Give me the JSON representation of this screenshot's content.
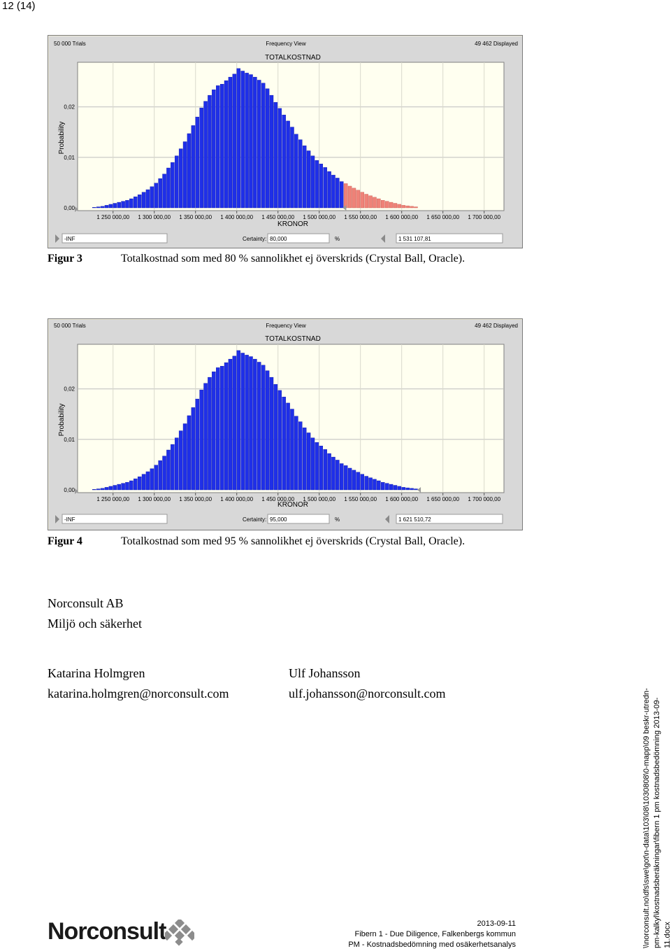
{
  "page": {
    "number": "12 (14)"
  },
  "figures": [
    {
      "caption_label": "Figur 3",
      "caption_text": "Totalkostnad som med 80 % sannolikhet ej överskrids (Crystal Ball, Oracle).",
      "window": {
        "trials": "50 000 Trials",
        "view": "Frequency View",
        "displayed": "49 462 Displayed",
        "title": "TOTALKOSTNAD",
        "ylabel": "Probability",
        "xlabel": "KRONOR",
        "left_field": "-INF",
        "certainty_label": "Certainty:",
        "certainty_value": "80,000",
        "percent_sign": "%",
        "right_field": "1 531 107,81"
      }
    },
    {
      "caption_label": "Figur 4",
      "caption_text": "Totalkostnad som med 95 % sannolikhet ej överskrids (Crystal Ball, Oracle).",
      "window": {
        "trials": "50 000 Trials",
        "view": "Frequency View",
        "displayed": "49 462 Displayed",
        "title": "TOTALKOSTNAD",
        "ylabel": "Probability",
        "xlabel": "KRONOR",
        "left_field": "-INF",
        "certainty_label": "Certainty:",
        "certainty_value": "95,000",
        "percent_sign": "%",
        "right_field": "1 621 510,72"
      }
    }
  ],
  "chart_data": [
    {
      "type": "bar",
      "title": "TOTALKOSTNAD",
      "xlabel": "KRONOR",
      "ylabel": "Probability",
      "x_ticks": [
        "1 250 000,00",
        "1 300 000,00",
        "1 350 000,00",
        "1 400 000,00",
        "1 450 000,00",
        "1 500 000,00",
        "1 550 000,00",
        "1 600 000,00",
        "1 650 000,00",
        "1 700 000,00"
      ],
      "x_tick_values": [
        1250000,
        1300000,
        1350000,
        1400000,
        1450000,
        1500000,
        1550000,
        1600000,
        1650000,
        1700000
      ],
      "y_ticks": [
        "0,00",
        "0,01",
        "0,02"
      ],
      "ylim": [
        0,
        0.028
      ],
      "bin_start": 1220000,
      "bin_width": 5000,
      "values": [
        0.0,
        0.0001,
        0.0002,
        0.0003,
        0.0005,
        0.0007,
        0.0009,
        0.0011,
        0.0013,
        0.0015,
        0.0018,
        0.0022,
        0.0026,
        0.0031,
        0.0036,
        0.0042,
        0.0049,
        0.0058,
        0.0067,
        0.0079,
        0.009,
        0.0103,
        0.0117,
        0.0131,
        0.0147,
        0.0163,
        0.018,
        0.0198,
        0.0211,
        0.0223,
        0.0234,
        0.0242,
        0.0245,
        0.0252,
        0.0259,
        0.0265,
        0.0276,
        0.0271,
        0.0267,
        0.0264,
        0.0259,
        0.0253,
        0.0247,
        0.0236,
        0.0223,
        0.0209,
        0.0197,
        0.0184,
        0.0172,
        0.016,
        0.0146,
        0.0135,
        0.0123,
        0.0113,
        0.0103,
        0.0094,
        0.0087,
        0.008,
        0.0072,
        0.0065,
        0.0059,
        0.0052,
        0.0048,
        0.0043,
        0.0039,
        0.0035,
        0.0031,
        0.0027,
        0.0024,
        0.0021,
        0.0018,
        0.0015,
        0.0013,
        0.0011,
        0.0009,
        0.0007,
        0.0005,
        0.0004,
        0.0003,
        0.0002
      ],
      "threshold": 1531107.81,
      "colors": {
        "below": "#1f2fe8",
        "above": "#ef8278"
      }
    },
    {
      "type": "bar",
      "title": "TOTALKOSTNAD",
      "xlabel": "KRONOR",
      "ylabel": "Probability",
      "x_ticks": [
        "1 250 000,00",
        "1 300 000,00",
        "1 350 000,00",
        "1 400 000,00",
        "1 450 000,00",
        "1 500 000,00",
        "1 550 000,00",
        "1 600 000,00",
        "1 650 000,00",
        "1 700 000,00"
      ],
      "x_tick_values": [
        1250000,
        1300000,
        1350000,
        1400000,
        1450000,
        1500000,
        1550000,
        1600000,
        1650000,
        1700000
      ],
      "y_ticks": [
        "0,00",
        "0,01",
        "0,02"
      ],
      "ylim": [
        0,
        0.028
      ],
      "bin_start": 1220000,
      "bin_width": 5000,
      "values": [
        0.0,
        0.0001,
        0.0002,
        0.0003,
        0.0005,
        0.0007,
        0.0009,
        0.0011,
        0.0013,
        0.0015,
        0.0018,
        0.0022,
        0.0026,
        0.0031,
        0.0036,
        0.0042,
        0.0049,
        0.0058,
        0.0067,
        0.0079,
        0.009,
        0.0103,
        0.0117,
        0.0131,
        0.0147,
        0.0163,
        0.018,
        0.0198,
        0.0211,
        0.0223,
        0.0234,
        0.0242,
        0.0245,
        0.0252,
        0.0259,
        0.0265,
        0.0276,
        0.0271,
        0.0267,
        0.0264,
        0.0259,
        0.0253,
        0.0247,
        0.0236,
        0.0223,
        0.0209,
        0.0197,
        0.0184,
        0.0172,
        0.016,
        0.0146,
        0.0135,
        0.0123,
        0.0113,
        0.0103,
        0.0094,
        0.0087,
        0.008,
        0.0072,
        0.0065,
        0.0059,
        0.0052,
        0.0048,
        0.0043,
        0.0039,
        0.0035,
        0.0031,
        0.0027,
        0.0024,
        0.0021,
        0.0018,
        0.0015,
        0.0013,
        0.0011,
        0.0009,
        0.0007,
        0.0005,
        0.0004,
        0.0003,
        0.0002
      ],
      "threshold": 1621510.72,
      "colors": {
        "below": "#1f2fe8",
        "above": "#ef8278"
      }
    }
  ],
  "organization": {
    "name": "Norconsult AB",
    "department": "Miljö och säkerhet"
  },
  "contacts": [
    {
      "name": "Katarina Holmgren",
      "email": "katarina.holmgren@norconsult.com"
    },
    {
      "name": "Ulf Johansson",
      "email": "ulf.johansson@norconsult.com"
    }
  ],
  "logo": {
    "text": "Norconsult"
  },
  "footer": {
    "date": "2013-09-11",
    "project": "Fibern 1 - Due Diligence, Falkenbergs kommun",
    "document": "PM - Kostnadsbedömning med osäkerhetsanalys"
  },
  "filepath": "\\\\norconsult.no\\dfs\\swe\\got\\n-data\\103\\08\\1030808\\0-mapp\\09 beskr-utredn-pm-kalkyl\\kostnadsberäkningar\\fibern 1 pm kostnadsbedömning 2013-09-11.docx"
}
